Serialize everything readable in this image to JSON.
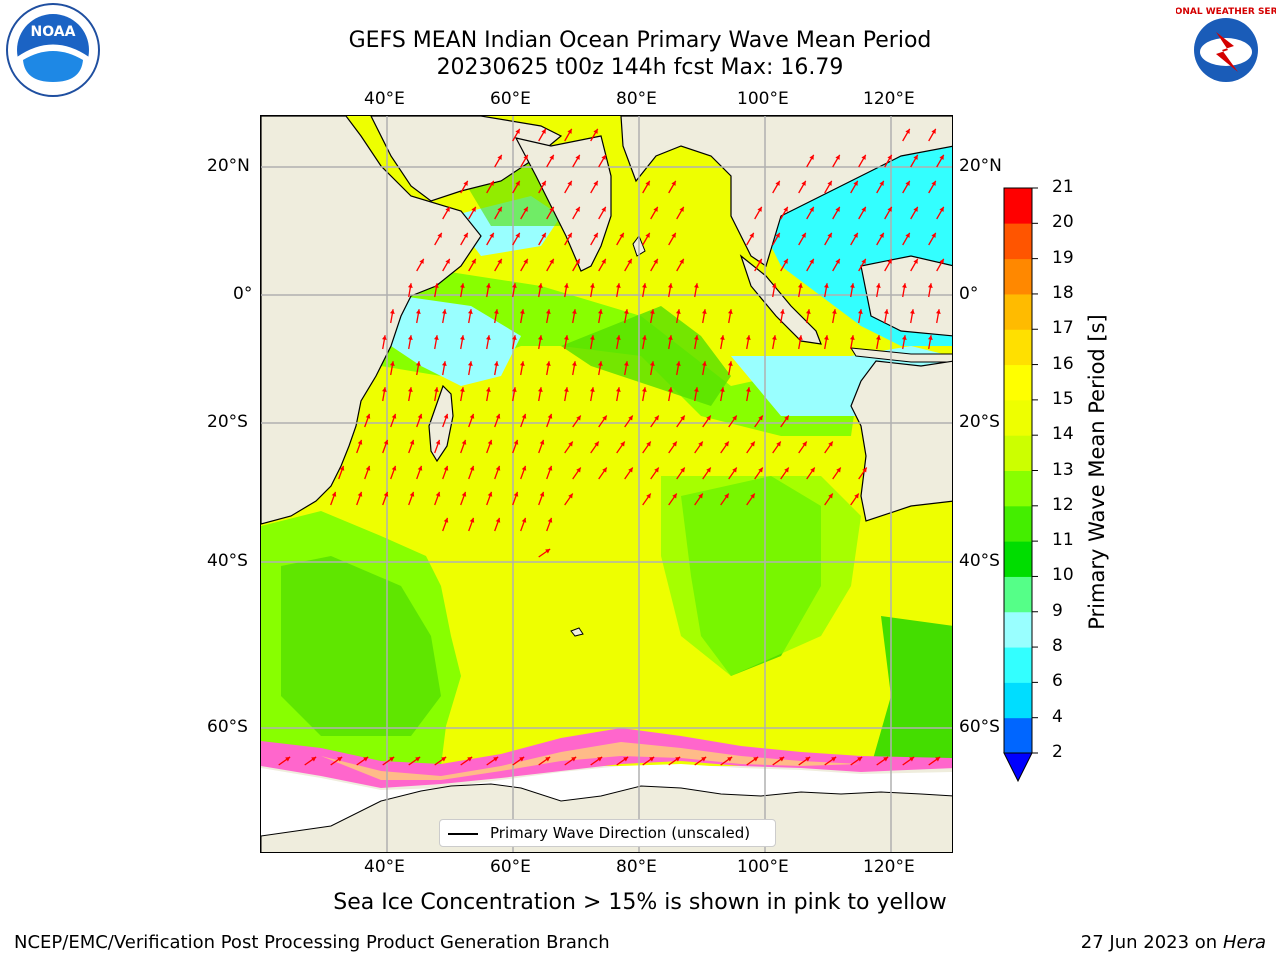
{
  "title": {
    "line1": "GEFS MEAN Indian Ocean Primary Wave Mean Period",
    "line2": "20230625 t00z 144h fcst   Max: 16.79"
  },
  "map": {
    "lon_labels_top": [
      "40°E",
      "60°E",
      "80°E",
      "100°E",
      "120°E"
    ],
    "lon_labels_bottom": [
      "40°E",
      "60°E",
      "80°E",
      "100°E",
      "120°E"
    ],
    "lat_labels_left": [
      "20°N",
      "0°",
      "20°S",
      "40°S",
      "60°S"
    ],
    "lat_labels_right": [
      "20°N",
      "0°",
      "20°S",
      "40°S",
      "60°S"
    ],
    "extent": {
      "lon_min": 20,
      "lon_max": 130,
      "lat_min": -72,
      "lat_max": 28
    },
    "grid": true,
    "legend_label": "Primary Wave Direction (unscaled)",
    "arrow_color": "#ff0000",
    "land_color": "#efeddd"
  },
  "colorbar": {
    "title": "Primary Wave Mean Period [s]",
    "ticks": [
      "21",
      "20",
      "19",
      "18",
      "17",
      "16",
      "15",
      "14",
      "13",
      "12",
      "11",
      "10",
      "9",
      "8",
      "6",
      "4",
      "2"
    ],
    "levels": [
      2,
      4,
      6,
      8,
      9,
      10,
      11,
      12,
      13,
      14,
      15,
      16,
      17,
      18,
      19,
      20,
      21
    ],
    "colors": [
      "#0066ff",
      "#00ddff",
      "#33ffff",
      "#99ffff",
      "#55ff88",
      "#00dd00",
      "#44ee00",
      "#88ff00",
      "#ccff00",
      "#eeff00",
      "#ffff00",
      "#ffe000",
      "#ffbb00",
      "#ff8800",
      "#ff5500",
      "#ff2200",
      "#ff0000"
    ],
    "extend_below_color": "#0000ff"
  },
  "note": "Sea Ice Concentration > 15% is shown in pink to yellow",
  "footer": {
    "left": "NCEP/EMC/Verification Post Processing Product Generation Branch",
    "date": "27 Jun 2023 on",
    "machine": "Hera"
  },
  "logos": {
    "left": "noaa-logo",
    "right": "nws-logo",
    "right_text": "NATIONAL WEATHER SERVICE"
  }
}
